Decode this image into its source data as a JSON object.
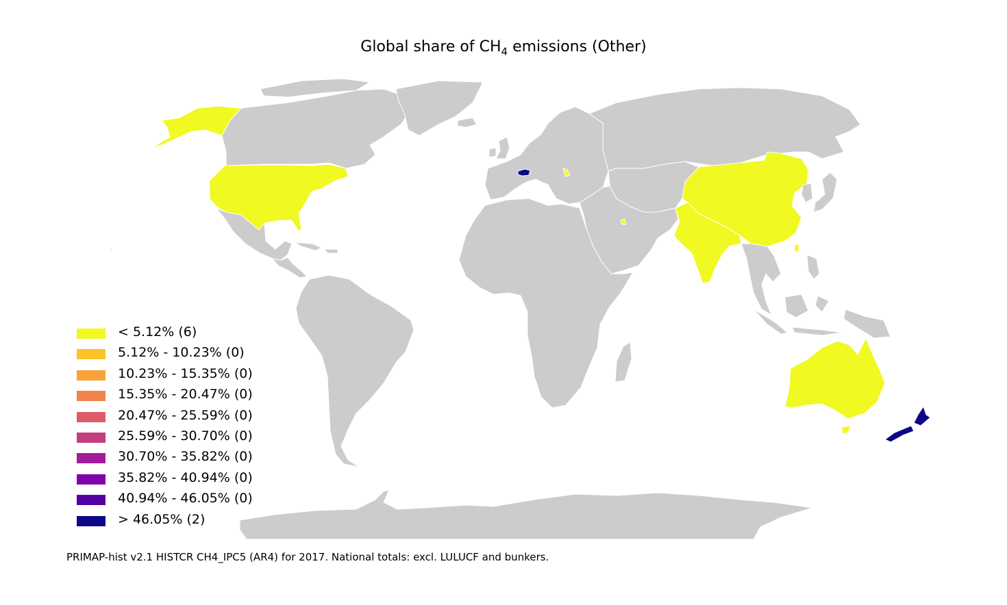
{
  "title": {
    "prefix": "Global share of CH",
    "subscript": "4",
    "suffix": " emissions (Other)"
  },
  "footer": "PRIMAP-hist v2.1 HISTCR CH4_IPC5 (AR4) for 2017. National totals: excl. LULUCF and bunkers.",
  "colors": {
    "no_data": "#cccccc",
    "border": "#ffffff",
    "bin_1": "#f0f921",
    "bin_10": "#0d0887"
  },
  "legend": [
    {
      "label": "< 5.12% (6)",
      "color": "#f0f921"
    },
    {
      "label": "5.12% - 10.23% (0)",
      "color": "#fdc328"
    },
    {
      "label": "10.23% - 15.35% (0)",
      "color": "#fca338"
    },
    {
      "label": "15.35% - 20.47% (0)",
      "color": "#f1844b"
    },
    {
      "label": "20.47% - 25.59% (0)",
      "color": "#dc5b68"
    },
    {
      "label": "25.59% - 30.70% (0)",
      "color": "#c33d80"
    },
    {
      "label": "30.70% - 35.82% (0)",
      "color": "#a21d9a"
    },
    {
      "label": "35.82% - 40.94% (0)",
      "color": "#7e03a8"
    },
    {
      "label": "40.94% - 46.05% (0)",
      "color": "#5302a3"
    },
    {
      "label": "> 46.05% (2)",
      "color": "#0d0887"
    }
  ]
}
